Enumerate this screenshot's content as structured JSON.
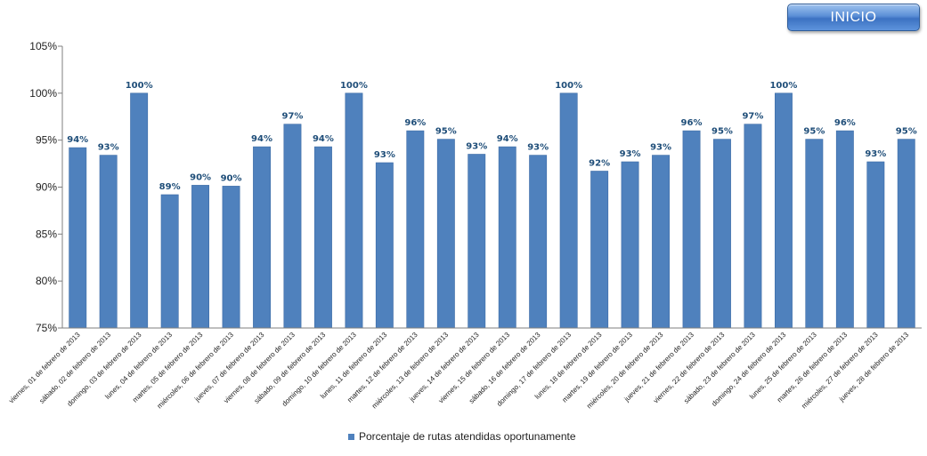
{
  "header": {
    "inicio_label": "INICIO"
  },
  "colors": {
    "bar": "#4f81bd",
    "bar_edge": "#3d6ca6",
    "label": "#1f4e79",
    "axis": "#7f7f7f"
  },
  "chart_data": {
    "type": "bar",
    "title": "",
    "xlabel": "",
    "ylabel": "",
    "ylim": [
      75,
      105
    ],
    "yticks": [
      75,
      80,
      85,
      90,
      95,
      100,
      105
    ],
    "ytick_labels": [
      "75%",
      "80%",
      "85%",
      "90%",
      "95%",
      "100%",
      "105%"
    ],
    "grid": false,
    "legend_position": "bottom",
    "categories": [
      "viernes, 01 de febrero de 2013",
      "sábado, 02 de febrero de 2013",
      "domingo, 03 de febrero de 2013",
      "lunes, 04 de febrero de 2013",
      "martes, 05 de febrero de 2013",
      "miércoles, 06 de febrero de 2013",
      "jueves, 07 de febrero de 2013",
      "viernes, 08 de febrero de 2013",
      "sábado, 09 de febrero de 2013",
      "domingo, 10 de febrero de 2013",
      "lunes, 11 de febrero de 2013",
      "martes, 12 de febrero de 2013",
      "miércoles, 13 de febrero de 2013",
      "jueves, 14 de febrero de 2013",
      "viernes, 15 de febrero de 2013",
      "sábado, 16 de febrero de 2013",
      "domingo, 17 de febrero de 2013",
      "lunes, 18 de febrero de 2013",
      "martes, 19 de febrero de 2013",
      "miércoles, 20 de febrero de 2013",
      "jueves, 21 de febrero de 2013",
      "viernes, 22 de febrero de 2013",
      "sábado, 23 de febrero de 2013",
      "domingo, 24 de febrero de 2013",
      "lunes, 25 de febrero de 2013",
      "martes, 26 de febrero de 2013",
      "miércoles, 27 de febrero de 2013",
      "jueves, 28 de febrero de 2013"
    ],
    "series": [
      {
        "name": "Porcentaje de rutas atendidas oportunamente",
        "values": [
          94.2,
          93.4,
          100,
          89.2,
          90.2,
          90.1,
          94.3,
          96.7,
          94.3,
          100,
          92.6,
          96.0,
          95.1,
          93.5,
          94.3,
          93.4,
          100,
          91.7,
          92.7,
          93.4,
          96.0,
          95.1,
          96.7,
          100,
          95.1,
          96.0,
          92.7,
          95.1
        ],
        "labels": [
          "94%",
          "93%",
          "100%",
          "89%",
          "90%",
          "90%",
          "94%",
          "97%",
          "94%",
          "100%",
          "93%",
          "96%",
          "95%",
          "93%",
          "94%",
          "93%",
          "100%",
          "92%",
          "93%",
          "93%",
          "96%",
          "95%",
          "97%",
          "100%",
          "95%",
          "96%",
          "93%",
          "95%"
        ]
      }
    ]
  }
}
